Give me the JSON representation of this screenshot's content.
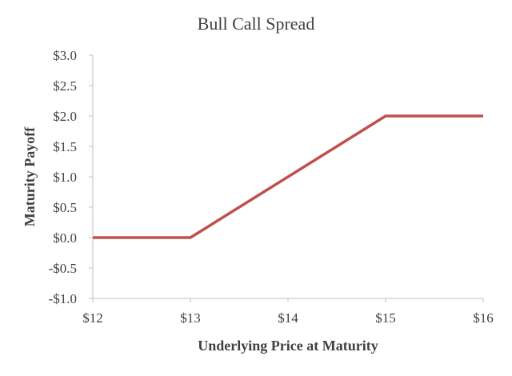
{
  "chart_data": {
    "type": "line",
    "title": "Bull Call Spread",
    "xlabel": "Underlying Price at Maturity",
    "ylabel": "Maturity Payoff",
    "x": [
      12,
      13,
      15,
      16
    ],
    "series": [
      {
        "values": [
          0,
          0,
          2,
          2
        ],
        "color": "#c0504d"
      }
    ],
    "xlim": [
      12,
      16
    ],
    "ylim": [
      -1.0,
      3.0
    ],
    "x_ticks": [
      12,
      13,
      14,
      15,
      16
    ],
    "x_tick_labels": [
      "$12",
      "$13",
      "$14",
      "$15",
      "$16"
    ],
    "y_ticks": [
      -1.0,
      -0.5,
      0.0,
      0.5,
      1.0,
      1.5,
      2.0,
      2.5,
      3.0
    ],
    "y_tick_labels": [
      "-$1.0",
      "-$0.5",
      "$0.0",
      "$0.5",
      "$1.0",
      "$1.5",
      "$2.0",
      "$2.5",
      "$3.0"
    ],
    "grid": false,
    "legend": "none",
    "colors": {
      "line": "#c0504d",
      "axis": "#bfbfbf",
      "text": "#404040"
    }
  }
}
